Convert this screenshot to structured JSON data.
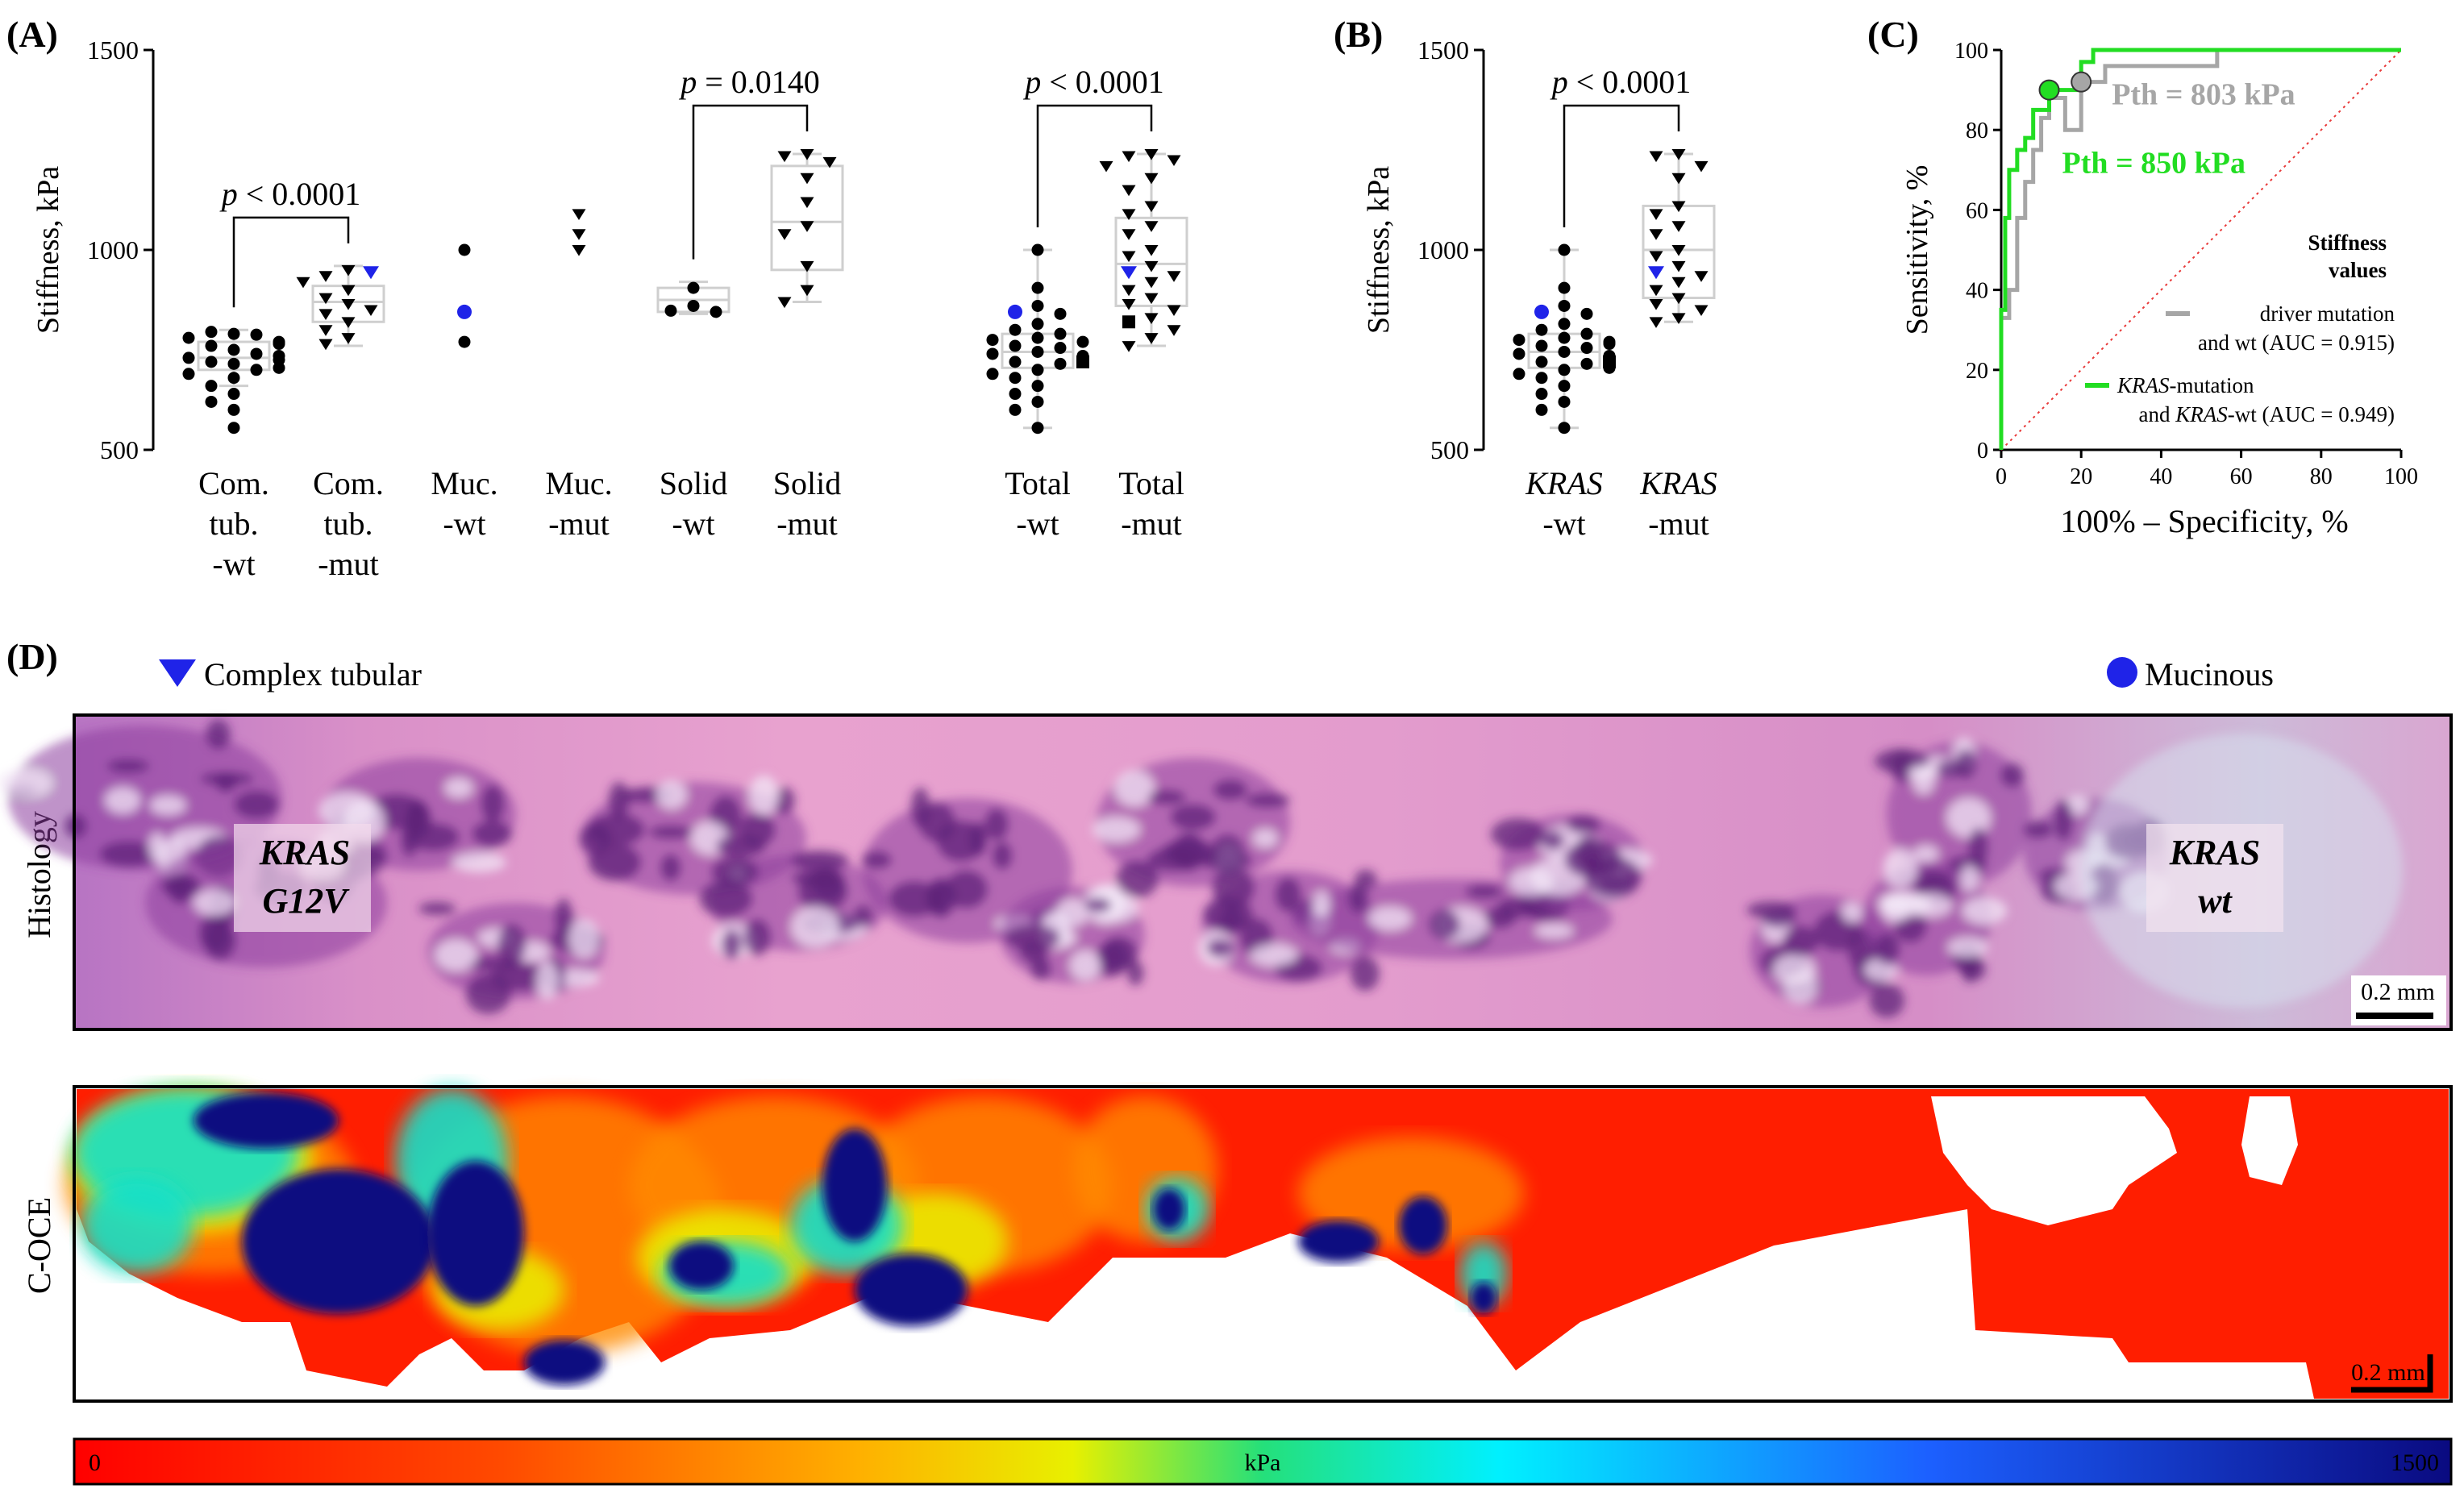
{
  "panel_labels": {
    "a": "(A)",
    "b": "(B)",
    "c": "(C)",
    "d": "(D)"
  },
  "chart_data": [
    {
      "type": "scatter",
      "panel": "A",
      "ylabel": "Stiffness, kPa",
      "ylim": [
        500,
        1500
      ],
      "yticks": [
        "500",
        "1000",
        "1500"
      ],
      "groups": [
        {
          "id": "ctw",
          "label": [
            "Com.",
            "tub.",
            "-wt"
          ],
          "box": [
            660,
            700,
            730,
            770,
            800
          ],
          "points": [
            [
              "c",
              790
            ],
            [
              "c",
              795
            ],
            [
              "c",
              788
            ],
            [
              "c",
              780
            ],
            [
              "c",
              770
            ],
            [
              "c",
              760
            ],
            [
              "c",
              750
            ],
            [
              "c",
              740
            ],
            [
              "c",
              730
            ],
            [
              "c",
              720
            ],
            [
              "c",
              715
            ],
            [
              "c",
              700
            ],
            [
              "c",
              690
            ],
            [
              "c",
              680
            ],
            [
              "c",
              660
            ],
            [
              "c",
              640
            ],
            [
              "c",
              620
            ],
            [
              "c",
              600
            ],
            [
              "c",
              555
            ],
            [
              "c",
              725
            ],
            [
              "c",
              735
            ],
            [
              "c",
              765
            ],
            [
              "c",
              705
            ]
          ]
        },
        {
          "id": "ctm",
          "label": [
            "Com.",
            "tub.",
            "-mut"
          ],
          "box": [
            760,
            820,
            870,
            910,
            960
          ],
          "points": [
            [
              "t",
              950
            ],
            [
              "t",
              935
            ],
            [
              "tb",
              945
            ],
            [
              "t",
              920
            ],
            [
              "t",
              900
            ],
            [
              "t",
              880
            ],
            [
              "t",
              865
            ],
            [
              "t",
              850
            ],
            [
              "t",
              840
            ],
            [
              "t",
              820
            ],
            [
              "t",
              800
            ],
            [
              "t",
              780
            ],
            [
              "t",
              765
            ]
          ]
        },
        {
          "id": "mw",
          "label": [
            "Muc.",
            "-wt"
          ],
          "points": [
            [
              "c",
              1000
            ],
            [
              "cb",
              845
            ],
            [
              "c",
              770
            ]
          ]
        },
        {
          "id": "mm",
          "label": [
            "Muc.",
            "-mut"
          ],
          "points": [
            [
              "t",
              1090
            ],
            [
              "t",
              1040
            ],
            [
              "t",
              1000
            ]
          ]
        },
        {
          "id": "sw",
          "label": [
            "Solid",
            "-wt"
          ],
          "box": [
            840,
            845,
            875,
            905,
            920
          ],
          "points": [
            [
              "c",
              905
            ],
            [
              "c",
              860
            ],
            [
              "c",
              848
            ],
            [
              "c",
              845
            ]
          ]
        },
        {
          "id": "sm",
          "label": [
            "Solid",
            "-mut"
          ],
          "box": [
            870,
            950,
            1070,
            1210,
            1240
          ],
          "points": [
            [
              "t",
              1240
            ],
            [
              "t",
              1235
            ],
            [
              "t",
              1220
            ],
            [
              "t",
              1180
            ],
            [
              "t",
              1120
            ],
            [
              "t",
              1060
            ],
            [
              "t",
              1040
            ],
            [
              "t",
              960
            ],
            [
              "t",
              900
            ],
            [
              "t",
              870
            ]
          ]
        },
        {
          "id": "tw",
          "label": [
            "Total",
            "-wt"
          ],
          "box": [
            555,
            705,
            745,
            790,
            1000
          ],
          "points": [
            [
              "c",
              1000
            ],
            [
              "c",
              905
            ],
            [
              "c",
              860
            ],
            [
              "cb",
              845
            ],
            [
              "c",
              840
            ],
            [
              "c",
              815
            ],
            [
              "c",
              800
            ],
            [
              "c",
              790
            ],
            [
              "c",
              780
            ],
            [
              "c",
              775
            ],
            [
              "c",
              770
            ],
            [
              "c",
              760
            ],
            [
              "c",
              755
            ],
            [
              "c",
              745
            ],
            [
              "c",
              740
            ],
            [
              "c",
              730
            ],
            [
              "c",
              720
            ],
            [
              "c",
              715
            ],
            [
              "c",
              700
            ],
            [
              "c",
              690
            ],
            [
              "c",
              680
            ],
            [
              "c",
              660
            ],
            [
              "c",
              640
            ],
            [
              "c",
              620
            ],
            [
              "c",
              600
            ],
            [
              "c",
              555
            ],
            [
              "s",
              720
            ],
            [
              "c",
              735
            ]
          ]
        },
        {
          "id": "tm",
          "label": [
            "Total",
            "-mut"
          ],
          "box": [
            760,
            860,
            965,
            1080,
            1240
          ],
          "points": [
            [
              "t",
              1240
            ],
            [
              "t",
              1235
            ],
            [
              "t",
              1225
            ],
            [
              "t",
              1210
            ],
            [
              "t",
              1180
            ],
            [
              "t",
              1150
            ],
            [
              "t",
              1110
            ],
            [
              "t",
              1090
            ],
            [
              "t",
              1060
            ],
            [
              "t",
              1040
            ],
            [
              "t",
              1000
            ],
            [
              "t",
              985
            ],
            [
              "t",
              960
            ],
            [
              "tb",
              945
            ],
            [
              "t",
              935
            ],
            [
              "t",
              920
            ],
            [
              "t",
              900
            ],
            [
              "t",
              880
            ],
            [
              "t",
              865
            ],
            [
              "t",
              850
            ],
            [
              "t",
              830
            ],
            [
              "s",
              820
            ],
            [
              "t",
              800
            ],
            [
              "t",
              780
            ],
            [
              "t",
              760
            ]
          ]
        }
      ],
      "comparisons": [
        {
          "from": "ctw",
          "to": "ctm",
          "label": "p < 0.0001"
        },
        {
          "from": "sw",
          "to": "sm",
          "label": "p = 0.0140"
        },
        {
          "from": "tw",
          "to": "tm",
          "label": "p < 0.0001"
        }
      ]
    },
    {
      "type": "scatter",
      "panel": "B",
      "ylabel": "Stiffness, kPa",
      "ylim": [
        500,
        1500
      ],
      "yticks": [
        "500",
        "1000",
        "1500"
      ],
      "groups": [
        {
          "id": "kw",
          "label": [
            "KRAS",
            "-wt"
          ],
          "box": [
            555,
            705,
            745,
            790,
            1000
          ],
          "points": [
            [
              "c",
              1000
            ],
            [
              "c",
              905
            ],
            [
              "c",
              860
            ],
            [
              "cb",
              845
            ],
            [
              "c",
              840
            ],
            [
              "c",
              815
            ],
            [
              "c",
              800
            ],
            [
              "c",
              790
            ],
            [
              "c",
              780
            ],
            [
              "c",
              775
            ],
            [
              "c",
              770
            ],
            [
              "c",
              760
            ],
            [
              "c",
              755
            ],
            [
              "c",
              745
            ],
            [
              "c",
              740
            ],
            [
              "c",
              730
            ],
            [
              "c",
              720
            ],
            [
              "c",
              715
            ],
            [
              "c",
              700
            ],
            [
              "c",
              690
            ],
            [
              "c",
              680
            ],
            [
              "c",
              660
            ],
            [
              "c",
              640
            ],
            [
              "c",
              620
            ],
            [
              "c",
              600
            ],
            [
              "c",
              555
            ],
            [
              "s",
              720
            ],
            [
              "c",
              735
            ],
            [
              "c",
              765
            ],
            [
              "c",
              705
            ]
          ]
        },
        {
          "id": "km",
          "label": [
            "KRAS",
            "-mut"
          ],
          "box": [
            820,
            880,
            1000,
            1110,
            1240
          ],
          "points": [
            [
              "t",
              1240
            ],
            [
              "t",
              1235
            ],
            [
              "t",
              1210
            ],
            [
              "t",
              1180
            ],
            [
              "t",
              1110
            ],
            [
              "t",
              1090
            ],
            [
              "t",
              1060
            ],
            [
              "t",
              1040
            ],
            [
              "t",
              1000
            ],
            [
              "t",
              985
            ],
            [
              "t",
              960
            ],
            [
              "tb",
              945
            ],
            [
              "t",
              935
            ],
            [
              "t",
              920
            ],
            [
              "t",
              900
            ],
            [
              "t",
              880
            ],
            [
              "t",
              865
            ],
            [
              "t",
              850
            ],
            [
              "t",
              830
            ],
            [
              "t",
              820
            ]
          ]
        }
      ],
      "comparisons": [
        {
          "from": "kw",
          "to": "km",
          "label": "p < 0.0001"
        }
      ]
    },
    {
      "type": "line",
      "panel": "C",
      "xlabel": "100% – Specificity, %",
      "ylabel": "Sensitivity, %",
      "xlim": [
        0,
        100
      ],
      "ylim": [
        0,
        100
      ],
      "ticks": [
        "0",
        "20",
        "40",
        "60",
        "80",
        "100"
      ],
      "series": [
        {
          "name": "driver mutation and wt (AUC = 0.915)",
          "color": "#a6a6a6",
          "x": [
            0,
            0,
            2,
            2,
            4,
            4,
            6,
            6,
            8,
            8,
            10,
            10,
            12,
            12,
            16,
            16,
            20,
            20,
            26,
            26,
            54,
            54,
            100
          ],
          "y": [
            0,
            33,
            33,
            40,
            40,
            58,
            58,
            67,
            67,
            75,
            75,
            83,
            83,
            88,
            88,
            80,
            80,
            92,
            92,
            96,
            96,
            100,
            100
          ]
        },
        {
          "name": "KRAS-mutation and KRAS-wt (AUC = 0.949)",
          "color": "#22dd22",
          "x": [
            0,
            0,
            1,
            1,
            2,
            2,
            4,
            4,
            6,
            6,
            8,
            8,
            12,
            12,
            20,
            20,
            23,
            23,
            100
          ],
          "y": [
            0,
            35,
            35,
            58,
            58,
            70,
            70,
            75,
            75,
            78,
            78,
            85,
            85,
            90,
            90,
            97,
            97,
            100,
            100
          ]
        }
      ],
      "points": [
        {
          "x": 20,
          "y": 92,
          "color": "#a6a6a6",
          "label": "Pth = 803 kPa"
        },
        {
          "x": 12,
          "y": 90,
          "color": "#22dd22",
          "label": "Pth = 850 kPa"
        }
      ],
      "legend_title": [
        "Stiffness",
        "values"
      ]
    }
  ],
  "panel_c_legend": {
    "grey_l1": "driver mutation",
    "grey_l2": "and wt (AUC = 0.915)",
    "green_l1_i": "KRAS",
    "green_l1_r": "-mutation",
    "green_l2_a": "and ",
    "green_l2_i": "KRAS",
    "green_l2_r": "-wt (AUC = 0.949)"
  },
  "panel_d": {
    "legend_triangle": "Complex tubular",
    "legend_circle": "Mucinous",
    "row1": "Histology",
    "row2": "C-OCE",
    "kras_left_1": "KRAS",
    "kras_left_2": "G12V",
    "kras_right_1": "KRAS",
    "kras_right_2": "wt",
    "scale1": "0.2 mm",
    "scale2": "0.2 mm",
    "colorbar_min": "0",
    "colorbar_mid": "kPa",
    "colorbar_max": "1500"
  },
  "colors": {
    "histo_pink": "#e79ccc",
    "histo_purple": "#6f2f86",
    "heat_red": "#ff1a00",
    "heat_blue": "#0a0a80",
    "box_grey": "#cccccc"
  }
}
